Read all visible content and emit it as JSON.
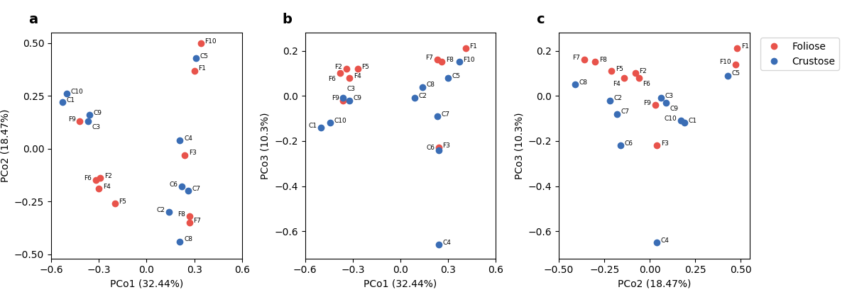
{
  "chart_data": [
    {
      "type": "scatter",
      "title": "a",
      "xlabel": "PCo1 (32.44%)",
      "ylabel": "PCo2 (18.47%)",
      "xlim": [
        -0.6,
        0.6
      ],
      "ylim": [
        -0.52,
        0.55
      ],
      "xticks": [
        {
          "value": -0.6,
          "label": "−0.6"
        },
        {
          "value": -0.3,
          "label": "−0.3"
        },
        {
          "value": 0.0,
          "label": "0.0"
        },
        {
          "value": 0.3,
          "label": "0.3"
        },
        {
          "value": 0.6,
          "label": "0.6"
        }
      ],
      "yticks": [
        {
          "value": -0.5,
          "label": "−0.50"
        },
        {
          "value": -0.25,
          "label": "−0.25"
        },
        {
          "value": 0.0,
          "label": "0.00"
        },
        {
          "value": 0.25,
          "label": "0.25"
        },
        {
          "value": 0.5,
          "label": "0.50"
        }
      ],
      "series": [
        {
          "name": "Foliose",
          "color": "#e8534b",
          "marker": "o",
          "labels": [
            "F10",
            "F1",
            "F9",
            "F3",
            "F6",
            "F2",
            "F4",
            "F5",
            "F7",
            "F8"
          ],
          "x": [
            0.34,
            0.3,
            -0.42,
            0.24,
            -0.32,
            -0.29,
            -0.3,
            -0.2,
            0.27,
            0.27
          ],
          "y": [
            0.5,
            0.37,
            0.13,
            -0.03,
            -0.15,
            -0.14,
            -0.19,
            -0.26,
            -0.35,
            -0.32
          ]
        },
        {
          "name": "Crustose",
          "color": "#3a6db5",
          "marker": "o",
          "labels": [
            "C5",
            "C1",
            "C10",
            "C9",
            "C3",
            "C4",
            "C6",
            "C7",
            "C2",
            "C8"
          ],
          "x": [
            0.31,
            -0.53,
            -0.5,
            -0.36,
            -0.37,
            0.21,
            0.22,
            0.26,
            0.14,
            0.21
          ],
          "y": [
            0.43,
            0.22,
            0.26,
            0.16,
            0.13,
            0.04,
            -0.18,
            -0.2,
            -0.3,
            -0.44
          ]
        }
      ]
    },
    {
      "type": "scatter",
      "title": "b",
      "xlabel": "PCo1 (32.44%)",
      "ylabel": "PCo3 (10.3%)",
      "xlim": [
        -0.6,
        0.6
      ],
      "ylim": [
        -0.72,
        0.28
      ],
      "xticks": [
        {
          "value": -0.6,
          "label": "−0.6"
        },
        {
          "value": -0.3,
          "label": "−0.3"
        },
        {
          "value": 0.0,
          "label": "0.0"
        },
        {
          "value": 0.3,
          "label": "0.3"
        },
        {
          "value": 0.6,
          "label": "0.6"
        }
      ],
      "yticks": [
        {
          "value": -0.6,
          "label": "−0.6"
        },
        {
          "value": -0.4,
          "label": "−0.4"
        },
        {
          "value": -0.2,
          "label": "−0.2"
        },
        {
          "value": 0.0,
          "label": "0.0"
        },
        {
          "value": 0.2,
          "label": "0.2"
        }
      ],
      "series": [
        {
          "name": "Foliose",
          "color": "#e8534b",
          "marker": "o",
          "labels": [
            "F1",
            "F7",
            "F8",
            "F2",
            "F5",
            "F4",
            "F6",
            "F9",
            "F3"
          ],
          "x": [
            0.41,
            0.23,
            0.26,
            -0.34,
            -0.27,
            -0.32,
            -0.38,
            -0.36,
            0.24
          ],
          "y": [
            0.21,
            0.16,
            0.15,
            0.12,
            0.12,
            0.08,
            0.1,
            -0.02,
            -0.23
          ]
        },
        {
          "name": "Crustose",
          "color": "#3a6db5",
          "marker": "o",
          "labels": [
            "F10",
            "C5",
            "C8",
            "C2",
            "C7",
            "C3",
            "C9",
            "C10",
            "C1",
            "C6",
            "C4"
          ],
          "x": [
            0.37,
            0.3,
            0.14,
            0.09,
            0.23,
            -0.36,
            -0.32,
            -0.44,
            -0.5,
            0.24,
            0.24
          ],
          "y": [
            0.15,
            0.08,
            0.04,
            -0.01,
            -0.09,
            -0.01,
            -0.02,
            -0.12,
            -0.14,
            -0.24,
            -0.66
          ]
        }
      ]
    },
    {
      "type": "scatter",
      "title": "c",
      "xlabel": "PCo2 (18.47%)",
      "ylabel": "PCo3 (10.3%)",
      "xlim": [
        -0.5,
        0.55
      ],
      "ylim": [
        -0.72,
        0.28
      ],
      "xticks": [
        {
          "value": -0.5,
          "label": "−0.50"
        },
        {
          "value": -0.25,
          "label": "−0.25"
        },
        {
          "value": 0.0,
          "label": "0.00"
        },
        {
          "value": 0.25,
          "label": "0.25"
        },
        {
          "value": 0.5,
          "label": "0.50"
        }
      ],
      "yticks": [
        {
          "value": -0.6,
          "label": "−0.6"
        },
        {
          "value": -0.4,
          "label": "−0.4"
        },
        {
          "value": -0.2,
          "label": "−0.2"
        },
        {
          "value": 0.0,
          "label": "0.0"
        },
        {
          "value": 0.2,
          "label": "0.2"
        }
      ],
      "legend": "upper left",
      "series": [
        {
          "name": "Foliose",
          "color": "#e8534b",
          "marker": "o",
          "labels": [
            "F1",
            "F10",
            "F7",
            "F8",
            "F5",
            "F2",
            "F4",
            "F6",
            "F9",
            "F3"
          ],
          "x": [
            0.48,
            0.47,
            -0.36,
            -0.3,
            -0.21,
            -0.08,
            -0.14,
            -0.06,
            0.03,
            0.04
          ],
          "y": [
            0.21,
            0.14,
            0.16,
            0.15,
            0.11,
            0.1,
            0.08,
            0.08,
            -0.04,
            -0.22
          ]
        },
        {
          "name": "Crustose",
          "color": "#3a6db5",
          "marker": "o",
          "labels": [
            "C5",
            "C8",
            "C2",
            "C7",
            "C3",
            "C9",
            "C10",
            "C1",
            "C6",
            "C4"
          ],
          "x": [
            0.43,
            -0.41,
            -0.22,
            -0.18,
            0.06,
            0.09,
            0.17,
            0.19,
            -0.16,
            0.04
          ],
          "y": [
            0.09,
            0.05,
            -0.02,
            -0.08,
            -0.01,
            -0.03,
            -0.11,
            -0.12,
            -0.22,
            -0.65
          ]
        }
      ]
    }
  ]
}
